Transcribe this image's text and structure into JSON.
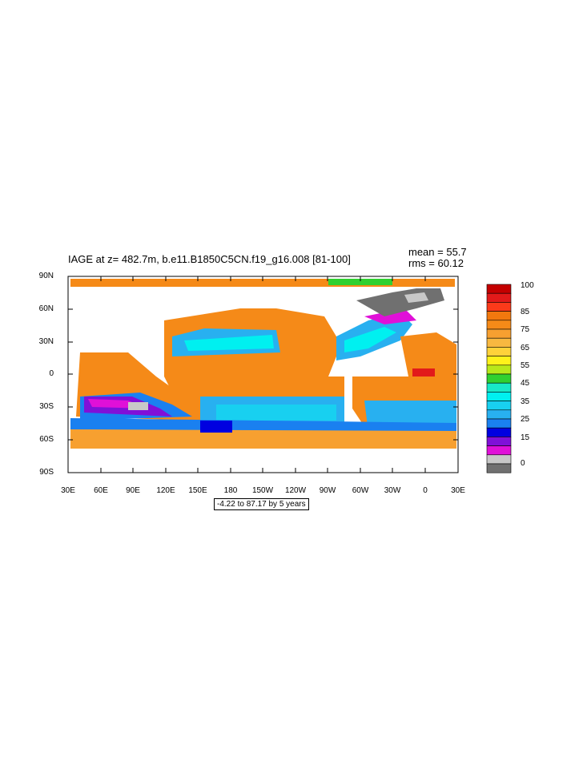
{
  "title": "IAGE at z= 482.7m, b.e11.B1850C5CN.f19_g16.008 [81-100]",
  "mean_text": "mean = 55.7",
  "rms_text": "rms = 60.12",
  "range_text": "-4.22 to 87.17 by 5 years",
  "lat_labels": [
    "90N",
    "60N",
    "30N",
    "0",
    "30S",
    "60S",
    "90S"
  ],
  "lon_labels": [
    "30E",
    "60E",
    "90E",
    "120E",
    "150E",
    "180",
    "150W",
    "120W",
    "90W",
    "60W",
    "30W",
    "0",
    "30E"
  ],
  "colorbar": {
    "labels": [
      "100",
      "85",
      "75",
      "65",
      "55",
      "45",
      "35",
      "25",
      "15",
      "0"
    ],
    "colors_top_to_bottom": [
      "#c40000",
      "#e21a1a",
      "#fb3a1a",
      "#f2780e",
      "#f58a18",
      "#f7a030",
      "#f8b840",
      "#ffd23a",
      "#fff21a",
      "#b8e81a",
      "#30d030",
      "#18e8c8",
      "#00f0f0",
      "#18d0f0",
      "#28b0f0",
      "#1a80f0",
      "#0000e0",
      "#8010d8",
      "#e010d8",
      "#c8c8c8",
      "#707070"
    ]
  }
}
